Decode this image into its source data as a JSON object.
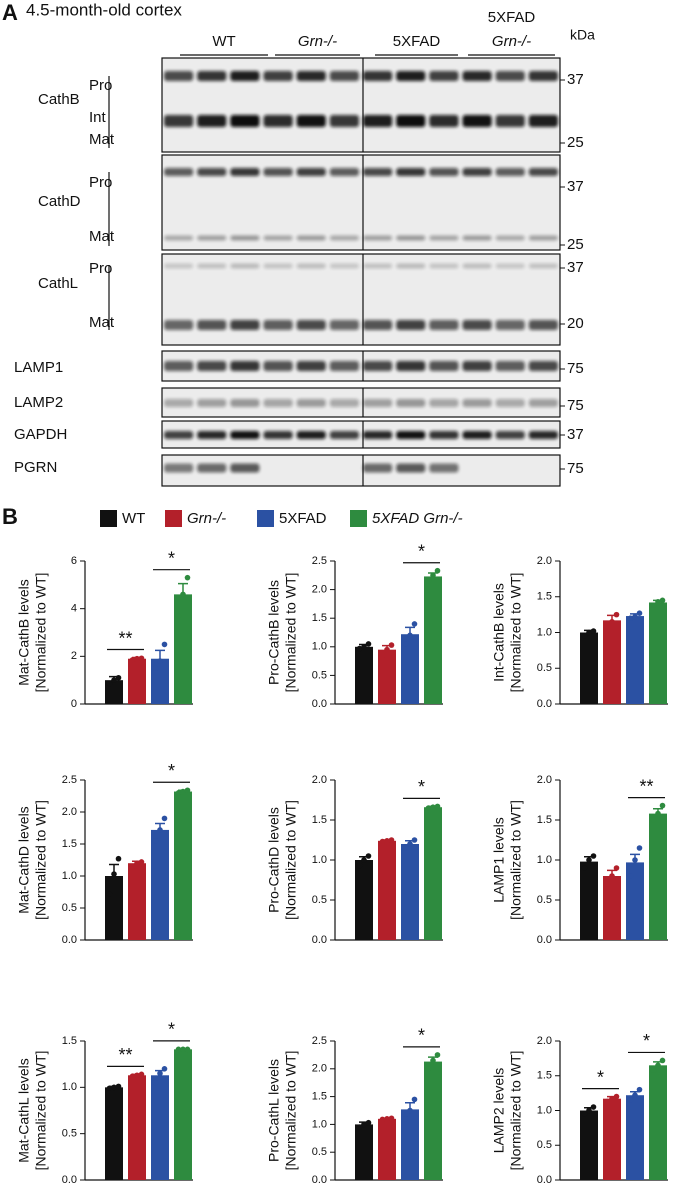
{
  "panel_a": {
    "label": "A",
    "title": "4.5-month-old cortex",
    "groups": [
      [
        "WT"
      ],
      [
        "Grn-/-"
      ],
      [
        "5XFAD"
      ],
      [
        "5XFAD",
        "Grn-/-"
      ]
    ],
    "unit": "kDa",
    "blots": [
      {
        "name": "CathB",
        "bands": [
          "Pro",
          "Int",
          "Mat"
        ],
        "markers": [
          37,
          25
        ]
      },
      {
        "name": "CathD",
        "bands": [
          "Pro",
          "Mat"
        ],
        "markers": [
          37,
          25
        ]
      },
      {
        "name": "CathL",
        "bands": [
          "Pro",
          "Mat"
        ],
        "markers": [
          37,
          20
        ]
      },
      {
        "name": "LAMP1",
        "bands": [],
        "markers": [
          75
        ]
      },
      {
        "name": "LAMP2",
        "bands": [],
        "markers": [
          75
        ]
      },
      {
        "name": "GAPDH",
        "bands": [],
        "markers": [
          37
        ]
      },
      {
        "name": "PGRN",
        "bands": [],
        "markers": [
          75
        ]
      }
    ]
  },
  "panel_b": {
    "label": "B",
    "legend": [
      {
        "name": "WT",
        "color": "#111111"
      },
      {
        "name": "Grn-/-",
        "color": "#b3202a"
      },
      {
        "name": "5XFAD",
        "color": "#2b51a3"
      },
      {
        "name": "5XFAD Grn-/-",
        "color": "#2e8b3f"
      }
    ]
  },
  "chart_data": [
    {
      "type": "bar",
      "ylabel": [
        "Mat-CathB levels",
        "[Normalized to WT]"
      ],
      "values": [
        1.0,
        1.9,
        1.9,
        4.6
      ],
      "errors": [
        0.15,
        0.05,
        0.35,
        0.45
      ],
      "points": [
        [
          0.85,
          1.0,
          1.1
        ],
        [
          1.85,
          1.9,
          1.92
        ],
        [
          1.5,
          1.8,
          2.5
        ],
        [
          3.7,
          4.6,
          5.3
        ]
      ],
      "ylim": [
        0,
        6
      ],
      "yticks": [
        0,
        2,
        4,
        6
      ],
      "significance": [
        {
          "pair": [
            0,
            1
          ],
          "label": "**"
        },
        {
          "pair": [
            2,
            3
          ],
          "label": "*"
        }
      ]
    },
    {
      "type": "bar",
      "ylabel": [
        "Pro-CathB levels",
        "[Normalized to WT]"
      ],
      "values": [
        1.0,
        0.95,
        1.22,
        2.23
      ],
      "errors": [
        0.04,
        0.07,
        0.12,
        0.06
      ],
      "points": [
        [
          0.97,
          1.0,
          1.05
        ],
        [
          0.85,
          0.95,
          1.03
        ],
        [
          1.05,
          1.2,
          1.4
        ],
        [
          2.15,
          2.25,
          2.33
        ]
      ],
      "ylim": [
        0,
        2.5
      ],
      "yticks": [
        {
          "value": 0,
          "label": "0.0"
        },
        {
          "value": 0.5,
          "label": "0.5"
        },
        {
          "value": 1,
          "label": "1.0"
        },
        {
          "value": 1.5,
          "label": "1.5"
        },
        {
          "value": 2,
          "label": "2.0"
        },
        {
          "value": 2.5,
          "label": "2.5"
        }
      ],
      "significance": [
        {
          "pair": [
            2,
            3
          ],
          "label": "*"
        }
      ]
    },
    {
      "type": "bar",
      "ylabel": [
        "Int-CathB levels",
        "[Normalized to WT]"
      ],
      "values": [
        1.0,
        1.17,
        1.23,
        1.42
      ],
      "errors": [
        0.03,
        0.07,
        0.03,
        0.03
      ],
      "points": [
        [
          0.95,
          1.0,
          1.02
        ],
        [
          1.08,
          1.15,
          1.25
        ],
        [
          1.2,
          1.22,
          1.27
        ],
        [
          1.38,
          1.43,
          1.45
        ]
      ],
      "ylim": [
        0,
        2
      ],
      "yticks": [
        {
          "value": 0,
          "label": "0.0"
        },
        {
          "value": 0.5,
          "label": "0.5"
        },
        {
          "value": 1,
          "label": "1.0"
        },
        {
          "value": 1.5,
          "label": "1.5"
        },
        {
          "value": 2,
          "label": "2.0"
        }
      ],
      "significance": []
    },
    {
      "type": "bar",
      "ylabel": [
        "Mat-CathD levels",
        "[Normalized to WT]"
      ],
      "values": [
        1.0,
        1.2,
        1.72,
        2.32
      ],
      "errors": [
        0.18,
        0.03,
        0.1,
        0.02
      ],
      "points": [
        [
          0.72,
          1.03,
          1.27
        ],
        [
          1.15,
          1.2,
          1.22
        ],
        [
          1.55,
          1.72,
          1.9
        ],
        [
          2.3,
          2.32,
          2.34
        ]
      ],
      "ylim": [
        0,
        2.5
      ],
      "yticks": [
        {
          "value": 0,
          "label": "0.0"
        },
        {
          "value": 0.5,
          "label": "0.5"
        },
        {
          "value": 1,
          "label": "1.0"
        },
        {
          "value": 1.5,
          "label": "1.5"
        },
        {
          "value": 2,
          "label": "2.0"
        },
        {
          "value": 2.5,
          "label": "2.5"
        }
      ],
      "significance": [
        {
          "pair": [
            2,
            3
          ],
          "label": "*"
        }
      ]
    },
    {
      "type": "bar",
      "ylabel": [
        "Pro-CathD levels",
        "[Normalized to WT]"
      ],
      "values": [
        1.0,
        1.24,
        1.2,
        1.66
      ],
      "errors": [
        0.04,
        0.01,
        0.04,
        0.01
      ],
      "points": [
        [
          0.93,
          1.0,
          1.05
        ],
        [
          1.23,
          1.24,
          1.25
        ],
        [
          1.15,
          1.2,
          1.25
        ],
        [
          1.65,
          1.66,
          1.67
        ]
      ],
      "ylim": [
        0,
        2
      ],
      "yticks": [
        {
          "value": 0,
          "label": "0.0"
        },
        {
          "value": 0.5,
          "label": "0.5"
        },
        {
          "value": 1,
          "label": "1.0"
        },
        {
          "value": 1.5,
          "label": "1.5"
        },
        {
          "value": 2,
          "label": "2.0"
        }
      ],
      "significance": [
        {
          "pair": [
            2,
            3
          ],
          "label": "*"
        }
      ]
    },
    {
      "type": "bar",
      "ylabel": [
        "LAMP1 levels",
        "[Normalized to WT]"
      ],
      "values": [
        0.98,
        0.8,
        0.97,
        1.58
      ],
      "errors": [
        0.06,
        0.07,
        0.1,
        0.06
      ],
      "points": [
        [
          0.9,
          1.0,
          1.05
        ],
        [
          0.7,
          0.8,
          0.9
        ],
        [
          0.8,
          1.0,
          1.15
        ],
        [
          1.5,
          1.58,
          1.68
        ]
      ],
      "ylim": [
        0,
        2
      ],
      "yticks": [
        {
          "value": 0,
          "label": "0.0"
        },
        {
          "value": 0.5,
          "label": "0.5"
        },
        {
          "value": 1,
          "label": "1.0"
        },
        {
          "value": 1.5,
          "label": "1.5"
        },
        {
          "value": 2,
          "label": "2.0"
        }
      ],
      "significance": [
        {
          "pair": [
            2,
            3
          ],
          "label": "**"
        }
      ]
    },
    {
      "type": "bar",
      "ylabel": [
        "Mat-CathL levels",
        "[Normalized to WT]"
      ],
      "values": [
        1.0,
        1.13,
        1.13,
        1.41
      ],
      "errors": [
        0.01,
        0.01,
        0.05,
        0.005
      ],
      "points": [
        [
          0.99,
          1.0,
          1.01
        ],
        [
          1.12,
          1.13,
          1.14
        ],
        [
          1.05,
          1.15,
          1.2
        ],
        [
          1.41,
          1.41,
          1.41
        ]
      ],
      "ylim": [
        0,
        1.5
      ],
      "yticks": [
        {
          "value": 0,
          "label": "0.0"
        },
        {
          "value": 0.5,
          "label": "0.5"
        },
        {
          "value": 1,
          "label": "1.0"
        },
        {
          "value": 1.5,
          "label": "1.5"
        }
      ],
      "significance": [
        {
          "pair": [
            0,
            1
          ],
          "label": "**"
        },
        {
          "pair": [
            2,
            3
          ],
          "label": "*"
        }
      ]
    },
    {
      "type": "bar",
      "ylabel": [
        "Pro-CathL levels",
        "[Normalized to WT]"
      ],
      "values": [
        1.0,
        1.1,
        1.27,
        2.13
      ],
      "errors": [
        0.04,
        0.01,
        0.12,
        0.08
      ],
      "points": [
        [
          0.95,
          1.0,
          1.03
        ],
        [
          1.09,
          1.1,
          1.11
        ],
        [
          1.1,
          1.25,
          1.45
        ],
        [
          2.0,
          2.15,
          2.25
        ]
      ],
      "ylim": [
        0,
        2.5
      ],
      "yticks": [
        {
          "value": 0,
          "label": "0.0"
        },
        {
          "value": 0.5,
          "label": "0.5"
        },
        {
          "value": 1,
          "label": "1.0"
        },
        {
          "value": 1.5,
          "label": "1.5"
        },
        {
          "value": 2,
          "label": "2.0"
        },
        {
          "value": 2.5,
          "label": "2.5"
        }
      ],
      "significance": [
        {
          "pair": [
            2,
            3
          ],
          "label": "*"
        }
      ]
    },
    {
      "type": "bar",
      "ylabel": [
        "LAMP2 levels",
        "[Normalized to WT]"
      ],
      "values": [
        1.0,
        1.17,
        1.22,
        1.65
      ],
      "errors": [
        0.04,
        0.03,
        0.05,
        0.05
      ],
      "points": [
        [
          0.95,
          1.0,
          1.05
        ],
        [
          1.13,
          1.17,
          1.2
        ],
        [
          1.15,
          1.22,
          1.3
        ],
        [
          1.58,
          1.65,
          1.72
        ]
      ],
      "ylim": [
        0,
        2
      ],
      "yticks": [
        {
          "value": 0,
          "label": "0.0"
        },
        {
          "value": 0.5,
          "label": "0.5"
        },
        {
          "value": 1,
          "label": "1.0"
        },
        {
          "value": 1.5,
          "label": "1.5"
        },
        {
          "value": 2,
          "label": "2.0"
        }
      ],
      "significance": [
        {
          "pair": [
            0,
            1
          ],
          "label": "*"
        },
        {
          "pair": [
            2,
            3
          ],
          "label": "*"
        }
      ]
    }
  ]
}
